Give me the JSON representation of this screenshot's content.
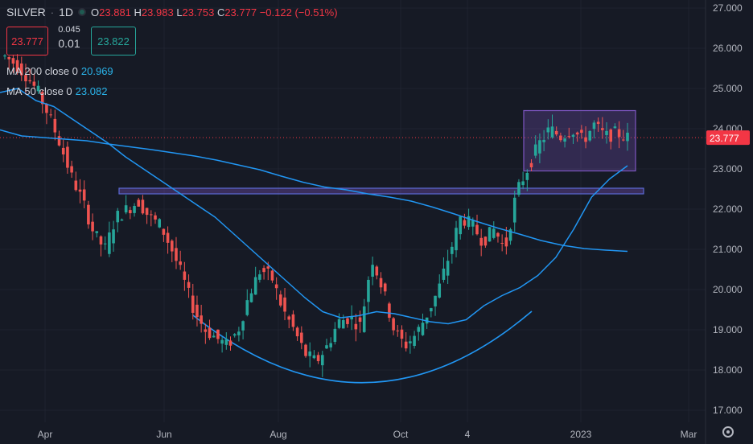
{
  "header": {
    "symbol": "SILVER",
    "interval": "1D",
    "open_label": "O",
    "open": "23.881",
    "high_label": "H",
    "high": "23.983",
    "low_label": "L",
    "low": "23.753",
    "close_label": "C",
    "close": "23.777",
    "change": "−0.122 (−0.51%)"
  },
  "trade": {
    "sell": "23.777",
    "buy": "23.822",
    "spread_top": "0.045",
    "spread_bottom": "0.01"
  },
  "indicators": [
    {
      "label": "MA 200 close 0",
      "value": "20.969"
    },
    {
      "label": "MA 50 close 0",
      "value": "23.082"
    }
  ],
  "colors": {
    "background": "#161a25",
    "up": "#26a69a",
    "down": "#ef5350",
    "ma": "#2196f3",
    "box": "#7e57c2"
  },
  "chart_data": {
    "type": "line",
    "x_ticks": [
      "Apr",
      "Jun",
      "Aug",
      "Oct",
      "4",
      "2023",
      "Mar"
    ],
    "y_ticks": [
      "27.000",
      "26.000",
      "25.000",
      "24.000",
      "23.000",
      "22.000",
      "21.000",
      "20.000",
      "19.000",
      "18.000",
      "17.000"
    ],
    "ylim": [
      16.8,
      27.2
    ],
    "last_price": "23.777",
    "series": [
      {
        "name": "MA 200 close 0",
        "values": [
          23.97,
          23.82,
          23.78,
          23.74,
          23.7,
          23.62,
          23.55,
          23.48,
          23.4,
          23.32,
          23.22,
          23.1,
          22.98,
          22.82,
          22.67,
          22.55,
          22.48,
          22.38,
          22.3,
          22.2,
          22.05,
          21.88,
          21.7,
          21.53,
          21.38,
          21.22,
          21.1,
          21.02,
          20.98,
          20.95
        ]
      },
      {
        "name": "MA 50 close 0",
        "values": [
          24.9,
          25.0,
          24.7,
          24.55,
          24.25,
          23.95,
          23.65,
          23.3,
          23.0,
          22.7,
          22.4,
          22.1,
          21.8,
          21.4,
          21.0,
          20.6,
          20.2,
          19.8,
          19.45,
          19.3,
          19.35,
          19.45,
          19.4,
          19.3,
          19.2,
          19.15,
          19.25,
          19.6,
          19.85,
          20.05,
          20.35,
          20.8,
          21.5,
          22.3,
          22.75,
          23.08
        ]
      },
      {
        "name": "Price",
        "values": [
          25.8,
          25.6,
          25.3,
          24.9,
          24.3,
          23.6,
          22.8,
          22.2,
          21.4,
          21.0,
          21.8,
          22.0,
          22.2,
          21.8,
          21.6,
          21.0,
          20.3,
          19.5,
          19.0,
          18.8,
          18.6,
          19.0,
          19.9,
          20.5,
          20.3,
          19.5,
          19.0,
          18.4,
          18.2,
          18.6,
          19.2,
          19.3,
          19.1,
          20.8,
          20.0,
          19.0,
          18.6,
          18.9,
          19.4,
          20.0,
          20.9,
          21.8,
          21.6,
          21.2,
          21.5,
          21.0,
          22.4,
          23.0,
          23.6,
          24.0,
          23.8,
          24.0,
          23.7,
          24.1,
          23.8,
          23.9,
          23.78
        ]
      }
    ],
    "annotations": [
      {
        "type": "rectangle",
        "x": [
          "Nov",
          "Jan"
        ],
        "y": [
          22.95,
          24.45
        ]
      },
      {
        "type": "rectangle",
        "x": [
          "May",
          "Jan"
        ],
        "y": [
          22.38,
          22.52
        ]
      },
      {
        "type": "arc",
        "y_min": 17.45
      }
    ]
  }
}
